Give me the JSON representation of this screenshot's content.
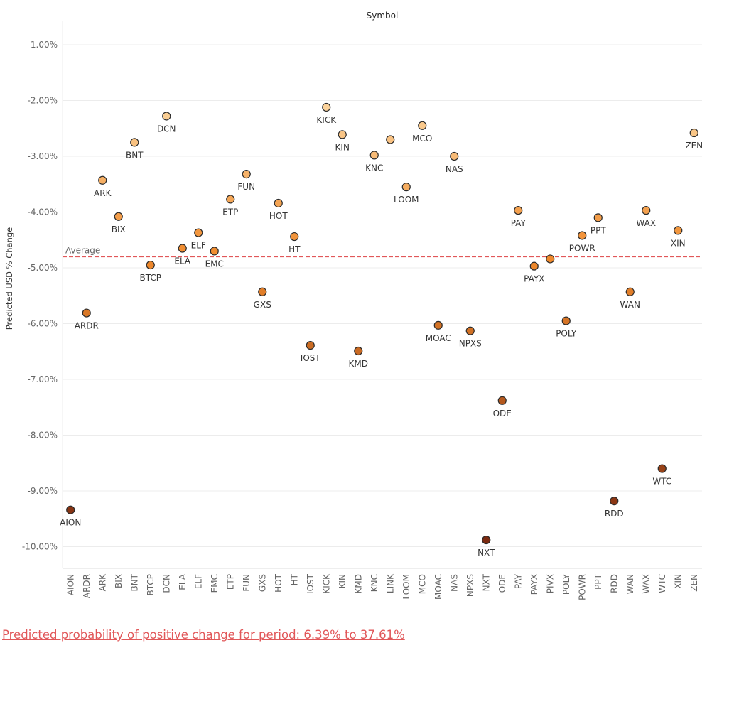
{
  "chart_data": {
    "type": "scatter",
    "title": "Symbol",
    "ylabel": "Predicted USD % Change",
    "ylim": [
      -10.4,
      -0.6
    ],
    "yticks": [
      -1,
      -2,
      -3,
      -4,
      -5,
      -6,
      -7,
      -8,
      -9,
      -10
    ],
    "ytick_labels": [
      "-1.00%",
      "-2.00%",
      "-3.00%",
      "-4.00%",
      "-5.00%",
      "-6.00%",
      "-7.00%",
      "-8.00%",
      "-9.00%",
      "-10.00%"
    ],
    "grid": true,
    "reference_line": {
      "label": "Average",
      "value": -4.8,
      "color": "#e15759"
    },
    "color_scale": {
      "low": "#7b2a10",
      "mid": "#f08a2c",
      "high": "#fbd29a"
    },
    "points": [
      {
        "symbol": "AION",
        "value": -9.34,
        "label_pos": "below"
      },
      {
        "symbol": "ARDR",
        "value": -5.81,
        "label_pos": "below"
      },
      {
        "symbol": "ARK",
        "value": -3.43,
        "label_pos": "below"
      },
      {
        "symbol": "BIX",
        "value": -4.08,
        "label_pos": "below"
      },
      {
        "symbol": "BNT",
        "value": -2.75,
        "label_pos": "below"
      },
      {
        "symbol": "BTCP",
        "value": -4.95,
        "label_pos": "below"
      },
      {
        "symbol": "DCN",
        "value": -2.28,
        "label_pos": "below"
      },
      {
        "symbol": "ELA",
        "value": -4.65,
        "label_pos": "below"
      },
      {
        "symbol": "ELF",
        "value": -4.37,
        "label_pos": "below"
      },
      {
        "symbol": "EMC",
        "value": -4.7,
        "label_pos": "below"
      },
      {
        "symbol": "ETP",
        "value": -3.77,
        "label_pos": "below"
      },
      {
        "symbol": "FUN",
        "value": -3.32,
        "label_pos": "below"
      },
      {
        "symbol": "GXS",
        "value": -5.43,
        "label_pos": "below"
      },
      {
        "symbol": "HOT",
        "value": -3.84,
        "label_pos": "below"
      },
      {
        "symbol": "HT",
        "value": -4.44,
        "label_pos": "below"
      },
      {
        "symbol": "IOST",
        "value": -6.39,
        "label_pos": "below"
      },
      {
        "symbol": "KICK",
        "value": -2.12,
        "label_pos": "below"
      },
      {
        "symbol": "KIN",
        "value": -2.61,
        "label_pos": "below"
      },
      {
        "symbol": "KMD",
        "value": -6.49,
        "label_pos": "below"
      },
      {
        "symbol": "KNC",
        "value": -2.98,
        "label_pos": "below"
      },
      {
        "symbol": "LINK",
        "value": -2.7,
        "label_pos": "none"
      },
      {
        "symbol": "LOOM",
        "value": -3.55,
        "label_pos": "below"
      },
      {
        "symbol": "MCO",
        "value": -2.45,
        "label_pos": "below"
      },
      {
        "symbol": "MOAC",
        "value": -6.03,
        "label_pos": "below"
      },
      {
        "symbol": "NAS",
        "value": -3.0,
        "label_pos": "below"
      },
      {
        "symbol": "NPXS",
        "value": -6.13,
        "label_pos": "below"
      },
      {
        "symbol": "NXT",
        "value": -9.88,
        "label_pos": "below"
      },
      {
        "symbol": "ODE",
        "value": -7.38,
        "label_pos": "below"
      },
      {
        "symbol": "PAY",
        "value": -3.97,
        "label_pos": "below"
      },
      {
        "symbol": "PAYX",
        "value": -4.97,
        "label_pos": "below"
      },
      {
        "symbol": "PIVX",
        "value": -4.84,
        "label_pos": "none"
      },
      {
        "symbol": "POLY",
        "value": -5.95,
        "label_pos": "below"
      },
      {
        "symbol": "POWR",
        "value": -4.42,
        "label_pos": "below"
      },
      {
        "symbol": "PPT",
        "value": -4.1,
        "label_pos": "below"
      },
      {
        "symbol": "RDD",
        "value": -9.18,
        "label_pos": "below"
      },
      {
        "symbol": "WAN",
        "value": -5.43,
        "label_pos": "below"
      },
      {
        "symbol": "WAX",
        "value": -3.97,
        "label_pos": "below"
      },
      {
        "symbol": "WTC",
        "value": -8.6,
        "label_pos": "below"
      },
      {
        "symbol": "XIN",
        "value": -4.33,
        "label_pos": "below"
      },
      {
        "symbol": "ZEN",
        "value": -2.58,
        "label_pos": "below"
      }
    ]
  },
  "footer": {
    "probability_text": "Predicted probability of positive change for period:  6.39% to 37.61%"
  }
}
